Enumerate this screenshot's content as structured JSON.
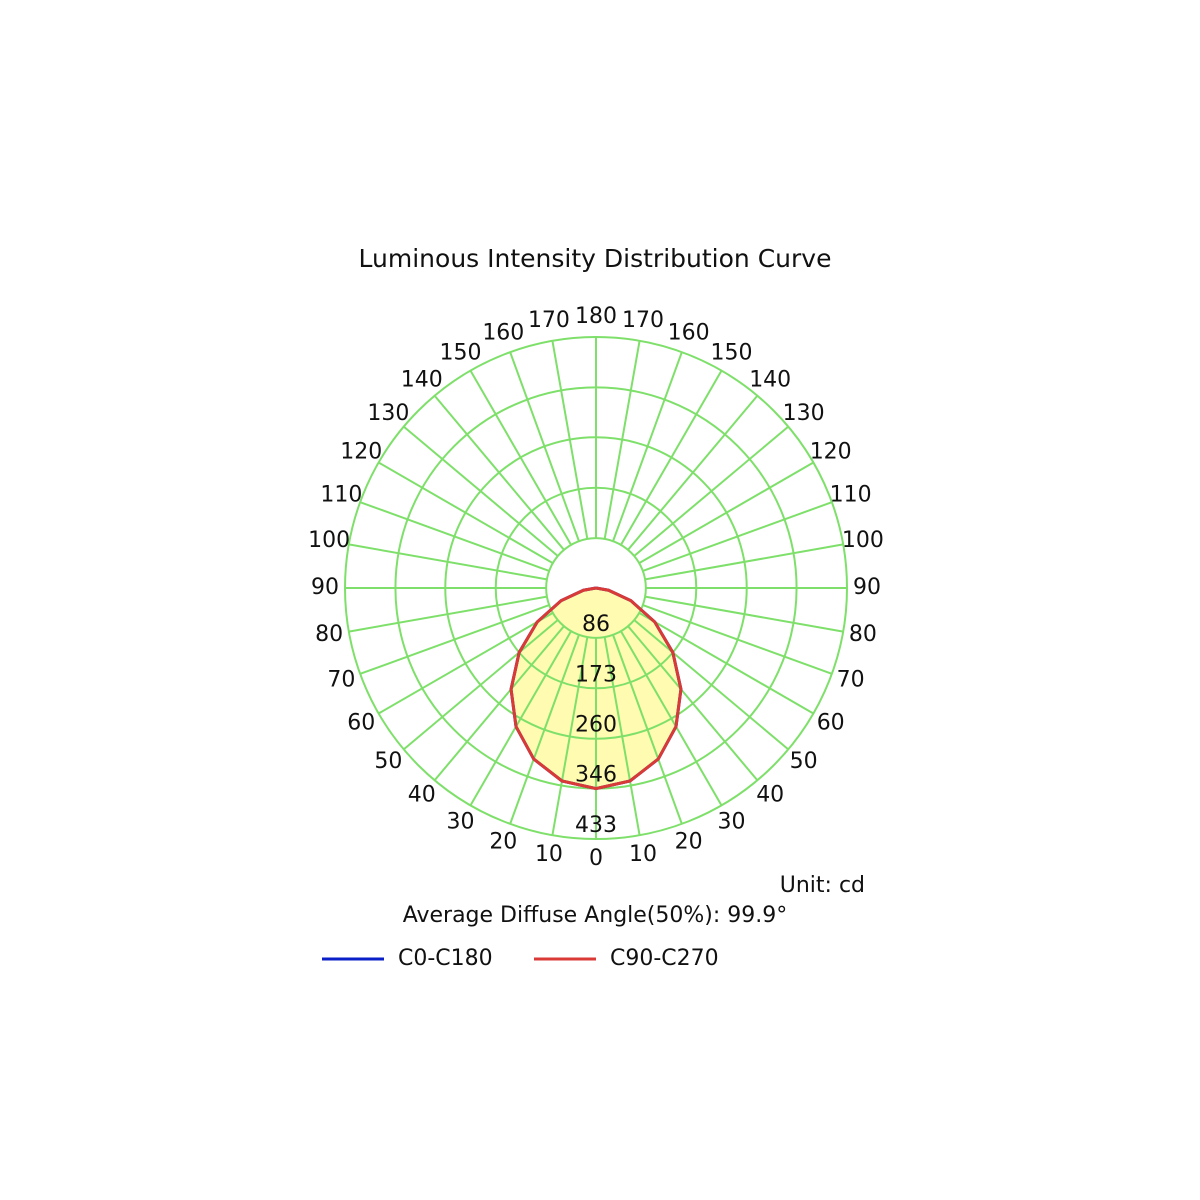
{
  "chart_data": {
    "type": "polar",
    "title": "Luminous Intensity Distribution Curve",
    "unit_label": "Unit: cd",
    "note": "Average Diffuse Angle(50%): 99.9°",
    "rlim": [
      0,
      433
    ],
    "rticks": [
      86,
      173,
      260,
      346,
      433
    ],
    "theta_ticks": [
      0,
      10,
      20,
      30,
      40,
      50,
      60,
      70,
      80,
      90,
      100,
      110,
      120,
      130,
      140,
      150,
      160,
      170,
      180
    ],
    "grid_color": "#7ee06a",
    "fill_color": "#fffbb0",
    "angles": [
      -90,
      -80,
      -70,
      -60,
      -50,
      -40,
      -30,
      -20,
      -10,
      0,
      10,
      20,
      30,
      40,
      50,
      60,
      70,
      80,
      90
    ],
    "series": [
      {
        "name": "C0-C180",
        "color": "#0a1fc8",
        "values": [
          0,
          22,
          64,
          117,
          173,
          228,
          276,
          314,
          338,
          346,
          338,
          314,
          276,
          228,
          173,
          117,
          64,
          22,
          0
        ]
      },
      {
        "name": "C90-C270",
        "color": "#d93a36",
        "values": [
          0,
          22,
          64,
          117,
          173,
          228,
          276,
          314,
          338,
          346,
          338,
          314,
          276,
          228,
          173,
          117,
          64,
          22,
          0
        ]
      }
    ]
  }
}
